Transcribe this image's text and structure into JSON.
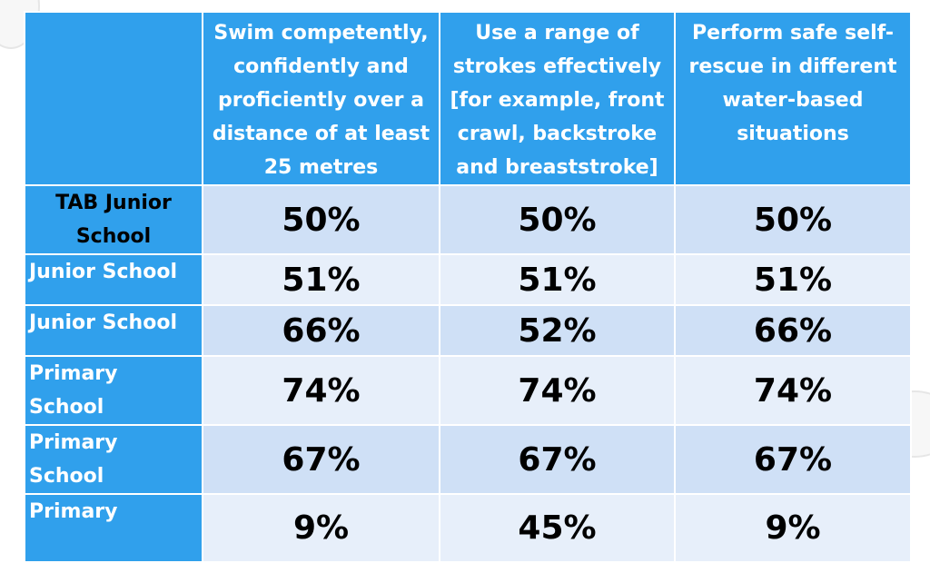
{
  "table": {
    "header": [
      "",
      "Swim competently, confidently and proficiently over a distance of at least 25 metres",
      "Use a range of strokes effectively [for example, front crawl, backstroke and breaststroke]",
      "Perform safe self-rescue in different water-based situations"
    ],
    "rows": [
      [
        "TAB Junior School",
        "50%",
        "50%",
        "50%"
      ],
      [
        "Junior School",
        "51%",
        "51%",
        "51%"
      ],
      [
        "Junior School",
        "66%",
        "52%",
        "66%"
      ],
      [
        "Primary School",
        "74%",
        "74%",
        "74%"
      ],
      [
        "Primary School",
        "67%",
        "67%",
        "67%"
      ],
      [
        "Primary",
        "9%",
        "45%",
        "9%"
      ]
    ]
  }
}
